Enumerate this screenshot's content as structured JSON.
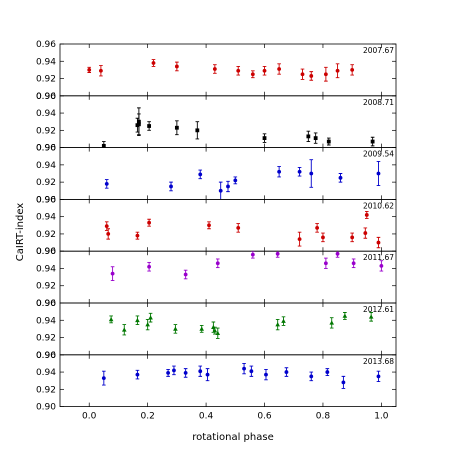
{
  "chart_data": {
    "type": "scatter",
    "xlabel": "rotational phase",
    "ylabel": "CaIRT-index",
    "xlim": [
      -0.1,
      1.05
    ],
    "ylim": [
      0.9,
      0.96
    ],
    "xticks": [
      0.0,
      0.2,
      0.4,
      0.6,
      0.8,
      1.0
    ],
    "xtick_labels": [
      "0.0",
      "0.2",
      "0.4",
      "0.6",
      "0.8",
      "1.0"
    ],
    "yticks": [
      0.9,
      0.92,
      0.94,
      0.96
    ],
    "ytick_labels": [
      "0.90",
      "0.92",
      "0.94",
      "0.96"
    ],
    "grid": false,
    "error_bars": true,
    "series": [
      {
        "name": "2007.67",
        "color": "#cc0000",
        "marker": "circle",
        "x": [
          0.0,
          0.04,
          0.22,
          0.3,
          0.43,
          0.51,
          0.56,
          0.6,
          0.65,
          0.73,
          0.76,
          0.81,
          0.85,
          0.9
        ],
        "y": [
          0.93,
          0.929,
          0.938,
          0.934,
          0.931,
          0.929,
          0.925,
          0.929,
          0.931,
          0.925,
          0.923,
          0.925,
          0.929,
          0.93
        ],
        "err": [
          0.003,
          0.006,
          0.004,
          0.005,
          0.005,
          0.005,
          0.004,
          0.005,
          0.006,
          0.006,
          0.005,
          0.008,
          0.008,
          0.006
        ]
      },
      {
        "name": "2008.71",
        "color": "#000000",
        "marker": "square",
        "x": [
          0.05,
          0.165,
          0.17,
          0.17,
          0.205,
          0.3,
          0.37,
          0.6,
          0.75,
          0.775,
          0.82,
          0.97
        ],
        "y": [
          0.902,
          0.926,
          0.93,
          0.927,
          0.925,
          0.923,
          0.92,
          0.911,
          0.913,
          0.911,
          0.907,
          0.907
        ],
        "err": [
          0.005,
          0.008,
          0.016,
          0.012,
          0.005,
          0.008,
          0.01,
          0.005,
          0.006,
          0.006,
          0.004,
          0.005
        ]
      },
      {
        "name": "2009.54",
        "color": "#0000cc",
        "marker": "circle",
        "x": [
          0.06,
          0.28,
          0.38,
          0.45,
          0.475,
          0.5,
          0.65,
          0.72,
          0.76,
          0.86,
          0.99
        ],
        "y": [
          0.918,
          0.915,
          0.929,
          0.91,
          0.915,
          0.922,
          0.932,
          0.932,
          0.93,
          0.925,
          0.93
        ],
        "err": [
          0.005,
          0.005,
          0.005,
          0.01,
          0.006,
          0.004,
          0.006,
          0.005,
          0.016,
          0.005,
          0.014
        ]
      },
      {
        "name": "2010.62",
        "color": "#cc0000",
        "marker": "circle",
        "x": [
          0.06,
          0.065,
          0.165,
          0.205,
          0.41,
          0.51,
          0.72,
          0.78,
          0.8,
          0.9,
          0.945,
          0.95,
          0.99
        ],
        "y": [
          0.929,
          0.92,
          0.918,
          0.933,
          0.93,
          0.927,
          0.914,
          0.927,
          0.916,
          0.916,
          0.921,
          0.942,
          0.91
        ],
        "err": [
          0.005,
          0.006,
          0.004,
          0.004,
          0.004,
          0.005,
          0.008,
          0.005,
          0.005,
          0.005,
          0.006,
          0.004,
          0.006
        ]
      },
      {
        "name": "2011.67",
        "color": "#9900cc",
        "marker": "circle",
        "x": [
          0.08,
          0.205,
          0.33,
          0.44,
          0.56,
          0.645,
          0.81,
          0.85,
          0.905,
          1.0
        ],
        "y": [
          0.934,
          0.942,
          0.933,
          0.946,
          0.956,
          0.957,
          0.946,
          0.957,
          0.946,
          0.943
        ],
        "err": [
          0.008,
          0.005,
          0.005,
          0.005,
          0.004,
          0.004,
          0.006,
          0.004,
          0.005,
          0.006
        ]
      },
      {
        "name": "2012.61",
        "color": "#007700",
        "marker": "triangle",
        "x": [
          0.075,
          0.12,
          0.165,
          0.2,
          0.21,
          0.295,
          0.385,
          0.425,
          0.43,
          0.44,
          0.645,
          0.665,
          0.83,
          0.875,
          0.965
        ],
        "y": [
          0.941,
          0.929,
          0.94,
          0.935,
          0.943,
          0.93,
          0.93,
          0.932,
          0.928,
          0.925,
          0.935,
          0.939,
          0.937,
          0.945,
          0.944
        ],
        "err": [
          0.004,
          0.006,
          0.005,
          0.006,
          0.005,
          0.005,
          0.004,
          0.006,
          0.004,
          0.006,
          0.006,
          0.005,
          0.006,
          0.004,
          0.005
        ]
      },
      {
        "name": "2013.68",
        "color": "#0000cc",
        "marker": "circle",
        "x": [
          0.05,
          0.165,
          0.27,
          0.29,
          0.33,
          0.38,
          0.405,
          0.53,
          0.555,
          0.605,
          0.675,
          0.76,
          0.815,
          0.87,
          0.99
        ],
        "y": [
          0.933,
          0.937,
          0.939,
          0.942,
          0.939,
          0.941,
          0.937,
          0.944,
          0.941,
          0.937,
          0.94,
          0.935,
          0.94,
          0.928,
          0.935
        ],
        "err": [
          0.008,
          0.005,
          0.004,
          0.005,
          0.005,
          0.006,
          0.007,
          0.006,
          0.006,
          0.006,
          0.005,
          0.005,
          0.004,
          0.007,
          0.006
        ]
      }
    ]
  }
}
